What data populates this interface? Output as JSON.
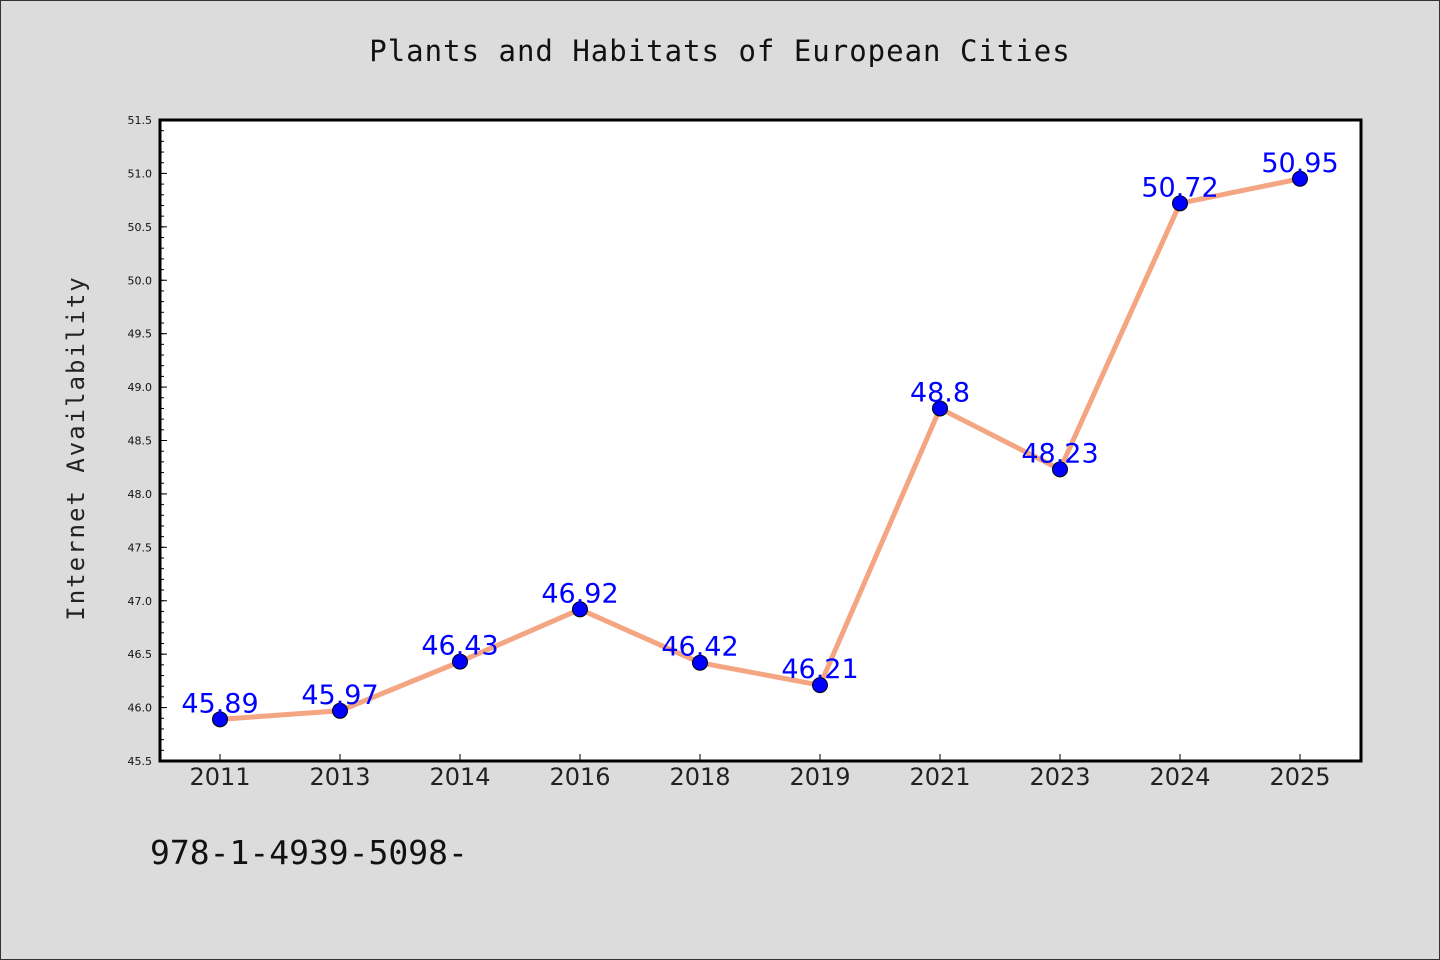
{
  "chart_data": {
    "type": "line",
    "title": "Plants and Habitats of European Cities",
    "xlabel": "",
    "ylabel": "Internet Availability",
    "categories": [
      "2011",
      "2013",
      "2014",
      "2016",
      "2018",
      "2019",
      "2021",
      "2023",
      "2024",
      "2025"
    ],
    "values": [
      45.89,
      45.97,
      46.43,
      46.92,
      46.42,
      46.21,
      48.8,
      48.23,
      50.72,
      50.95
    ],
    "data_labels": [
      "45.89",
      "45.97",
      "46.43",
      "46.92",
      "46.42",
      "46.21",
      "48.8",
      "48.23",
      "50.72",
      "50.95"
    ],
    "ylim": [
      45.5,
      51.5
    ],
    "yticks": [
      "45.5",
      "46.0",
      "46.5",
      "47.0",
      "47.5",
      "48.0",
      "48.5",
      "49.0",
      "49.5",
      "50.0",
      "50.5",
      "51.0",
      "51.5"
    ],
    "grid": false,
    "legend": "none",
    "colors": {
      "line": "#f4a582",
      "marker": "#0000ff",
      "label": "#0000ff",
      "plot_background": "#ffffff",
      "page_background": "#dcdcdc"
    }
  },
  "footer_code": "978-1-4939-5098-"
}
